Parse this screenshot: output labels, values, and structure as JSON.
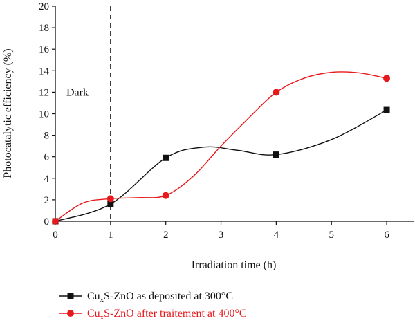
{
  "chart_data": {
    "type": "line",
    "title": "",
    "xlabel": "Irradiation time (h)",
    "ylabel": "Photocatalytic efficiency (%)",
    "xlim": [
      0,
      6.5
    ],
    "ylim": [
      0,
      20
    ],
    "xticks": [
      0,
      1,
      2,
      3,
      4,
      5,
      6
    ],
    "yticks": [
      0,
      2,
      4,
      6,
      8,
      10,
      12,
      14,
      16,
      18,
      20
    ],
    "grid": false,
    "legend_position": "bottom-left, below plot",
    "annotations": [
      {
        "text": "Dark",
        "x": 0.2,
        "y": 12,
        "vline_x": 1,
        "vline_style": "dashed"
      }
    ],
    "series": [
      {
        "name_base": "Cu",
        "name_sub": "x",
        "name_rest": "S-ZnO as deposited at 300°C",
        "color": "#111111",
        "marker": "square",
        "x": [
          0,
          1,
          2,
          4,
          6
        ],
        "y": [
          0,
          1.6,
          5.9,
          6.2,
          10.35
        ],
        "smooth_path": [
          [
            0,
            0
          ],
          [
            1,
            1.6
          ],
          [
            2,
            5.9
          ],
          [
            2.7,
            6.9
          ],
          [
            3.3,
            6.6
          ],
          [
            4,
            6.2
          ],
          [
            5,
            7.6
          ],
          [
            6,
            10.35
          ]
        ]
      },
      {
        "name_base": "Cu",
        "name_sub": "x",
        "name_rest": "S-ZnO after traitement at 400°C",
        "color": "#e8191c",
        "marker": "circle",
        "x": [
          0,
          1,
          2,
          4,
          6
        ],
        "y": [
          0,
          2.1,
          2.4,
          12.0,
          13.3
        ],
        "smooth_path": [
          [
            0,
            0
          ],
          [
            0.5,
            1.7
          ],
          [
            1,
            2.1
          ],
          [
            1.5,
            2.2
          ],
          [
            2,
            2.4
          ],
          [
            2.5,
            4.2
          ],
          [
            3,
            7.0
          ],
          [
            3.5,
            9.6
          ],
          [
            4,
            12.0
          ],
          [
            4.5,
            13.3
          ],
          [
            5,
            13.85
          ],
          [
            5.5,
            13.8
          ],
          [
            6,
            13.3
          ]
        ]
      }
    ]
  }
}
